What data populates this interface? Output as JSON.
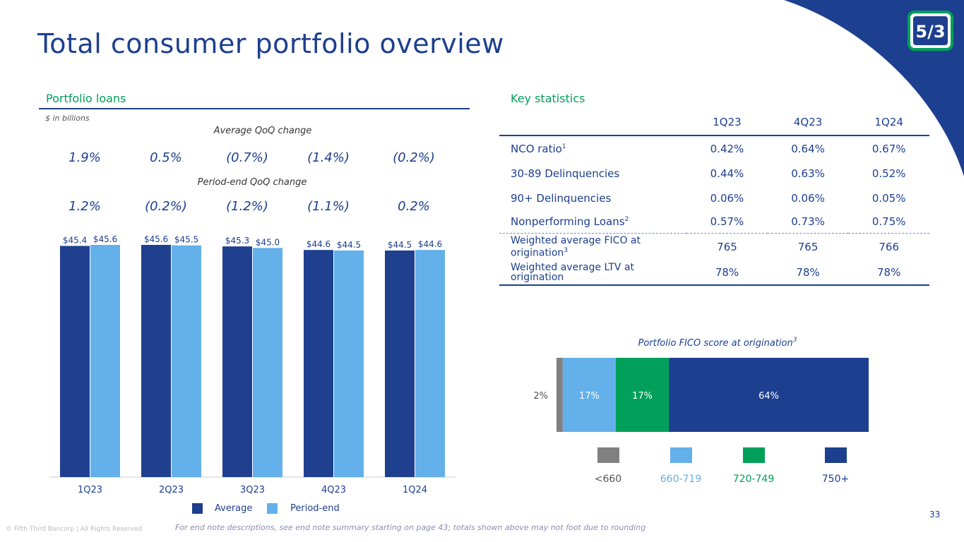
{
  "header": {
    "title": "Total consumer portfolio overview"
  },
  "colors": {
    "primary": "#1d3f8f",
    "average": "#1f3f8f",
    "period_end": "#63b0ea",
    "green": "#00a05a",
    "gray": "#808080"
  },
  "left": {
    "section_title": "Portfolio loans",
    "units_note": "$ in billions",
    "avg_change_label": "Average QoQ change",
    "avg_changes": [
      "1.9%",
      "0.5%",
      "(0.7%)",
      "(1.4%)",
      "(0.2%)"
    ],
    "pe_change_label": "Period-end QoQ change",
    "pe_changes": [
      "1.2%",
      "(0.2%)",
      "(1.2%)",
      "(1.1%)",
      "0.2%"
    ],
    "legend": {
      "average": "Average",
      "period_end": "Period-end"
    }
  },
  "chart_data": [
    {
      "type": "bar",
      "title": "Portfolio loans",
      "ylabel": "$ in billions",
      "categories": [
        "1Q23",
        "2Q23",
        "3Q23",
        "4Q23",
        "1Q24"
      ],
      "series": [
        {
          "name": "Average",
          "values": [
            45.4,
            45.6,
            45.3,
            44.6,
            44.5
          ],
          "labels": [
            "$45.4",
            "$45.6",
            "$45.3",
            "$44.6",
            "$44.5"
          ]
        },
        {
          "name": "Period-end",
          "values": [
            45.6,
            45.5,
            45.0,
            44.5,
            44.6
          ],
          "labels": [
            "$45.6",
            "$45.5",
            "$45.0",
            "$44.5",
            "$44.6"
          ]
        }
      ],
      "ylim": [
        0,
        45.6
      ]
    },
    {
      "type": "bar",
      "orientation": "horizontal-stacked",
      "title": "Portfolio FICO score at origination",
      "title_sup": "3",
      "segments": [
        {
          "name": "<660",
          "value": 2,
          "label": "2%"
        },
        {
          "name": "660-719",
          "value": 17,
          "label": "17%"
        },
        {
          "name": "720-749",
          "value": 17,
          "label": "17%"
        },
        {
          "name": "750+",
          "value": 64,
          "label": "64%"
        }
      ]
    }
  ],
  "stats": {
    "section_title": "Key statistics",
    "columns": [
      "1Q23",
      "4Q23",
      "1Q24"
    ],
    "rows": [
      {
        "label": "NCO ratio",
        "sup": "1",
        "values": [
          "0.42%",
          "0.64%",
          "0.67%"
        ]
      },
      {
        "label": "30-89 Delinquencies",
        "sup": "",
        "values": [
          "0.44%",
          "0.63%",
          "0.52%"
        ]
      },
      {
        "label": "90+ Delinquencies",
        "sup": "",
        "values": [
          "0.06%",
          "0.06%",
          "0.05%"
        ]
      },
      {
        "label": "Nonperforming Loans",
        "sup": "2",
        "values": [
          "0.57%",
          "0.73%",
          "0.75%"
        ]
      },
      {
        "label": "Weighted average FICO at origination",
        "sup": "3",
        "values": [
          "765",
          "765",
          "766"
        ]
      },
      {
        "label": "Weighted average LTV at origination",
        "sup": "",
        "values": [
          "78%",
          "78%",
          "78%"
        ]
      }
    ]
  },
  "footer": {
    "note": "For end note descriptions, see end note summary starting on page 43; totals shown above may not foot due to rounding",
    "copyright": "© Fifth Third Bancorp | All Rights Reserved",
    "page": "33"
  },
  "logo": {
    "text": "5/3",
    "icon": "fifth-third-logo-icon"
  }
}
